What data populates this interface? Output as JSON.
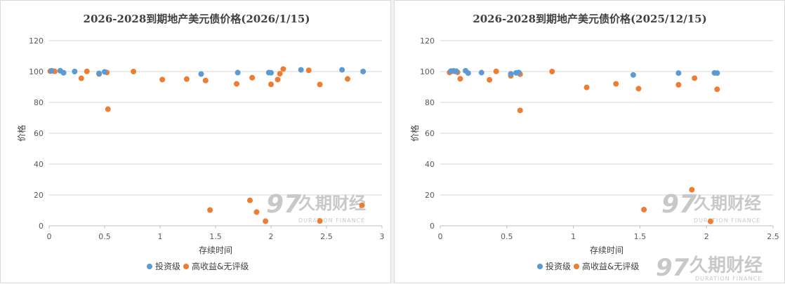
{
  "colors": {
    "invest": "#5b9bd5",
    "high": "#ed7d31",
    "grid": "#d9d9d9"
  },
  "watermark": {
    "brand": "久期财经",
    "sub": "DURATION FINANCE"
  },
  "chart_data": [
    {
      "type": "scatter",
      "title": "2026-2028到期地产美元债价格(2026/1/15)",
      "xlabel": "存续时间",
      "ylabel": "价格",
      "xlim": [
        0,
        3
      ],
      "ylim": [
        0,
        120
      ],
      "xticks": [
        "0",
        "0.5",
        "1",
        "1.5",
        "2",
        "2.5",
        "3"
      ],
      "yticks": [
        "0",
        "20",
        "40",
        "60",
        "80",
        "100",
        "120"
      ],
      "grid": true,
      "legend_position": "bottom",
      "series": [
        {
          "name": "投资级",
          "color_key": "invest",
          "points": [
            [
              0.02,
              100.5
            ],
            [
              0.1,
              100.5
            ],
            [
              0.13,
              99.2
            ],
            [
              0.23,
              100
            ],
            [
              0.45,
              98.8
            ],
            [
              0.5,
              99.8
            ],
            [
              1.37,
              98.4
            ],
            [
              1.7,
              99.3
            ],
            [
              1.98,
              99.3
            ],
            [
              2.0,
              99.2
            ],
            [
              2.27,
              101.1
            ],
            [
              2.64,
              101.1
            ],
            [
              2.83,
              100
            ]
          ]
        },
        {
          "name": "高收益&无评级",
          "color_key": "high",
          "points": [
            [
              0.01,
              100.2
            ],
            [
              0.04,
              100.3
            ],
            [
              0.05,
              100.1
            ],
            [
              0.29,
              95.6
            ],
            [
              0.34,
              100.1
            ],
            [
              0.45,
              98.4
            ],
            [
              0.52,
              99.4
            ],
            [
              0.53,
              75.6
            ],
            [
              0.76,
              100
            ],
            [
              1.02,
              94.8
            ],
            [
              1.24,
              95.1
            ],
            [
              1.41,
              94.2
            ],
            [
              1.45,
              10.2
            ],
            [
              1.69,
              92
            ],
            [
              1.81,
              16.5
            ],
            [
              1.83,
              96
            ],
            [
              1.87,
              8.9
            ],
            [
              1.95,
              3
            ],
            [
              2.0,
              91.7
            ],
            [
              2.06,
              94.8
            ],
            [
              2.08,
              98.6
            ],
            [
              2.11,
              101.6
            ],
            [
              2.34,
              100.8
            ],
            [
              2.44,
              91.6
            ],
            [
              2.44,
              3.1
            ],
            [
              2.69,
              95.2
            ],
            [
              2.82,
              13.3
            ]
          ]
        }
      ]
    },
    {
      "type": "scatter",
      "title": "2026-2028到期地产美元债价格(2025/12/15)",
      "xlabel": "存续时间",
      "ylabel": "价格",
      "xlim": [
        0,
        2.5
      ],
      "ylim": [
        0,
        120
      ],
      "xticks": [
        "0",
        "0.5",
        "1",
        "1.5",
        "2",
        "2.5"
      ],
      "yticks": [
        "0",
        "20",
        "40",
        "60",
        "80",
        "100",
        "120"
      ],
      "grid": true,
      "legend_position": "bottom",
      "series": [
        {
          "name": "投资级",
          "color_key": "invest",
          "points": [
            [
              0.08,
              100.3
            ],
            [
              0.1,
              100.4
            ],
            [
              0.12,
              100.2
            ],
            [
              0.19,
              100.5
            ],
            [
              0.21,
              99
            ],
            [
              0.31,
              99.3
            ],
            [
              0.53,
              98.5
            ],
            [
              0.57,
              99.1
            ],
            [
              0.59,
              99.4
            ],
            [
              1.45,
              97.8
            ],
            [
              1.79,
              99
            ],
            [
              2.06,
              99.1
            ],
            [
              2.08,
              99
            ]
          ]
        },
        {
          "name": "高收益&无评级",
          "color_key": "high",
          "points": [
            [
              0.07,
              99.4
            ],
            [
              0.09,
              100.2
            ],
            [
              0.11,
              100.1
            ],
            [
              0.13,
              99.5
            ],
            [
              0.15,
              95.3
            ],
            [
              0.37,
              94.6
            ],
            [
              0.42,
              100.1
            ],
            [
              0.53,
              97.2
            ],
            [
              0.6,
              98.3
            ],
            [
              0.6,
              74.8
            ],
            [
              0.84,
              100
            ],
            [
              1.1,
              89.7
            ],
            [
              1.32,
              92
            ],
            [
              1.49,
              88.9
            ],
            [
              1.53,
              10.5
            ],
            [
              1.79,
              91.4
            ],
            [
              1.89,
              23.4
            ],
            [
              1.91,
              95.7
            ],
            [
              2.03,
              2.9
            ],
            [
              2.08,
              88.5
            ]
          ]
        }
      ]
    }
  ]
}
